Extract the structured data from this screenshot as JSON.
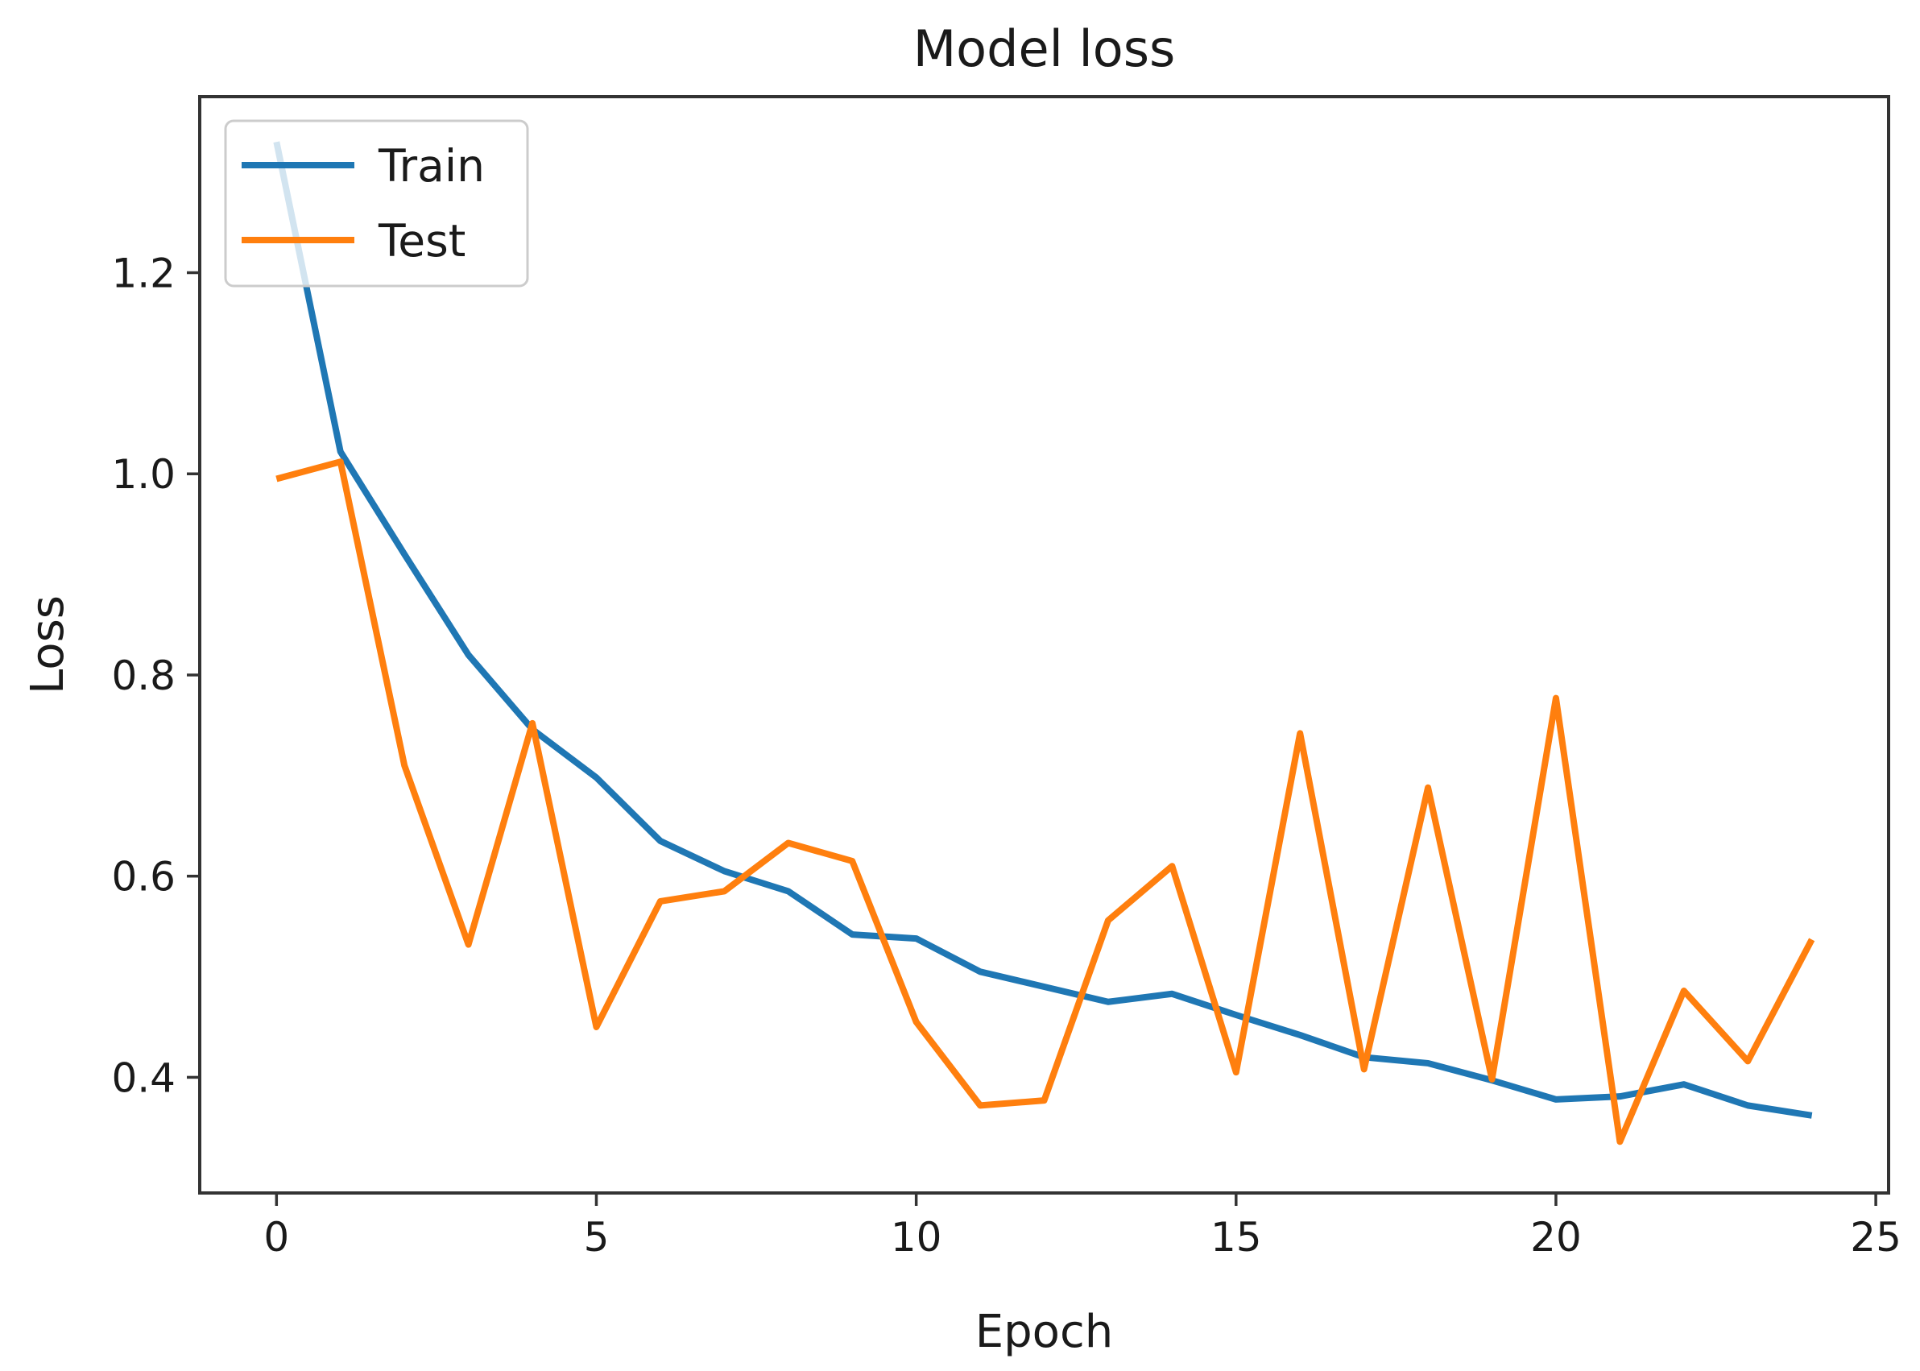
{
  "figure": {
    "background": "#ffffff",
    "title": "Model loss"
  },
  "chart_data": {
    "type": "line",
    "title": "Model loss",
    "xlabel": "Epoch",
    "ylabel": "Loss",
    "x": [
      0,
      1,
      2,
      3,
      4,
      5,
      6,
      7,
      8,
      9,
      10,
      11,
      12,
      13,
      14,
      15,
      16,
      17,
      18,
      19,
      20,
      21,
      22,
      23,
      24
    ],
    "series": [
      {
        "name": "Train",
        "color": "#1f77b4",
        "values": [
          1.33,
          1.022,
          0.92,
          0.82,
          0.746,
          0.698,
          0.635,
          0.605,
          0.585,
          0.542,
          0.538,
          0.505,
          0.49,
          0.475,
          0.483,
          0.462,
          0.442,
          0.42,
          0.414,
          0.397,
          0.378,
          0.381,
          0.393,
          0.372,
          0.362
        ]
      },
      {
        "name": "Test",
        "color": "#ff7f0e",
        "values": [
          0.995,
          1.012,
          0.71,
          0.532,
          0.752,
          0.45,
          0.575,
          0.585,
          0.633,
          0.615,
          0.455,
          0.372,
          0.377,
          0.556,
          0.61,
          0.405,
          0.742,
          0.408,
          0.688,
          0.398,
          0.777,
          0.336,
          0.486,
          0.416,
          0.537
        ]
      }
    ],
    "xlim": [
      -1.2,
      25.2
    ],
    "ylim": [
      0.285,
      1.375
    ],
    "xticks": [
      0,
      5,
      10,
      15,
      20,
      25
    ],
    "yticks": [
      0.4,
      0.6,
      0.8,
      1.0,
      1.2
    ],
    "grid": false,
    "legend": {
      "position": "upper-left",
      "entries": [
        "Train",
        "Test"
      ],
      "frame_color": "#cccccc",
      "frame_fill_alpha": 0.8
    },
    "spine_color": "#333333",
    "text_color": "#1a1a1a",
    "tick_label_color": "#262626"
  }
}
